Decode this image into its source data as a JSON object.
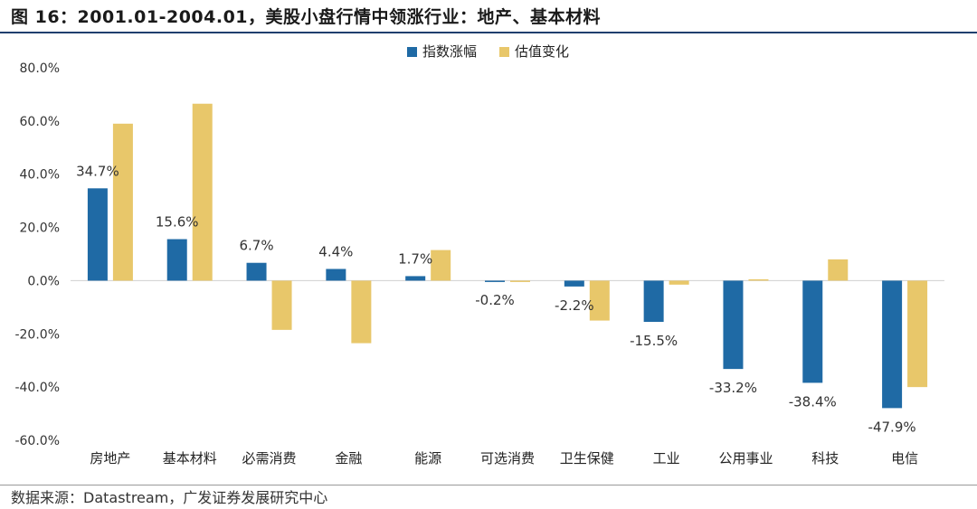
{
  "figure": {
    "title": "图 16：2001.01-2004.01，美股小盘行情中领涨行业：地产、基本材料",
    "source": "数据来源：Datastream，广发证券发展研究中心"
  },
  "chart_data": {
    "type": "bar",
    "categories": [
      "房地产",
      "基本材料",
      "必需消费",
      "金融",
      "能源",
      "可选消费",
      "卫生保健",
      "工业",
      "公用事业",
      "科技",
      "电信"
    ],
    "series": [
      {
        "name": "指数涨幅",
        "color": "#1f6aa5",
        "values": [
          34.7,
          15.6,
          6.7,
          4.4,
          1.7,
          -0.2,
          -2.2,
          -15.5,
          -33.2,
          -38.4,
          -47.9
        ]
      },
      {
        "name": "估值变化",
        "color": "#e8c76a",
        "values": [
          59.0,
          66.5,
          -18.5,
          -23.5,
          11.5,
          -0.5,
          -15.0,
          -1.5,
          0.5,
          8.0,
          -40.0
        ]
      }
    ],
    "data_labels": [
      "34.7%",
      "15.6%",
      "6.7%",
      "4.4%",
      "1.7%",
      "-0.2%",
      "-2.2%",
      "-15.5%",
      "-33.2%",
      "-38.4%",
      "-47.9%"
    ],
    "y_ticks": [
      "80.0%",
      "60.0%",
      "40.0%",
      "20.0%",
      "0.0%",
      "-20.0%",
      "-40.0%",
      "-60.0%"
    ],
    "ylim": [
      -60,
      80
    ],
    "legend_position": "top-center",
    "grid": false
  }
}
